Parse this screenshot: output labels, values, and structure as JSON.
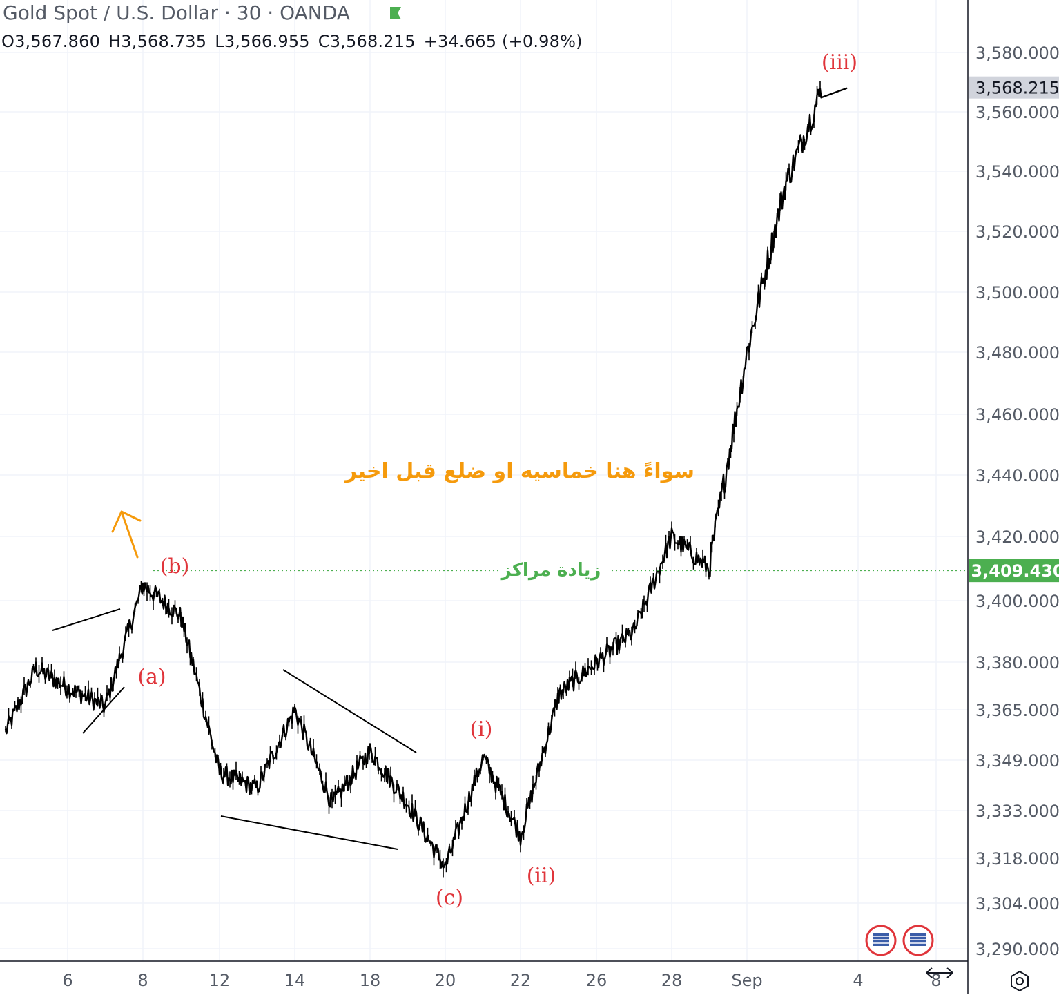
{
  "header": {
    "title": "Gold Spot / U.S. Dollar · 30 · OANDA",
    "open": "O3,567.860",
    "high": "H3,568.735",
    "low": "L3,566.955",
    "close": "C3,568.215",
    "change": "+34.665 (+0.98%)"
  },
  "colors": {
    "wave_label": "#e0353b",
    "annotation_orange": "#f59a0c",
    "level_green": "#4caf50",
    "candles": "#000000",
    "axis_text": "#555b66"
  },
  "chart_data": {
    "type": "line",
    "title": "Gold Spot / U.S. Dollar · 30 · OANDA",
    "x_tick_labels": [
      "6",
      "8",
      "12",
      "14",
      "18",
      "20",
      "22",
      "26",
      "28",
      "Sep",
      "4",
      "8"
    ],
    "y_tick_labels": [
      "3,580.000",
      "3,560.000",
      "3,540.000",
      "3,520.000",
      "3,500.000",
      "3,480.000",
      "3,460.000",
      "3,440.000",
      "3,420.000",
      "3,400.000",
      "3,380.000",
      "3,365.000",
      "3,349.000",
      "3,333.000",
      "3,318.000",
      "3,304.000",
      "3,290.000"
    ],
    "y_tick_values": [
      3580,
      3560,
      3540,
      3520,
      3500,
      3480,
      3460,
      3440,
      3420,
      3400,
      3380,
      3365,
      3349,
      3333,
      3318,
      3304,
      3290
    ],
    "current_price_label": "3,568.215",
    "level_price_label": "3,409.430",
    "level_price": 3409.43,
    "level_label": "زيادة مراكز",
    "annotation_text": "سواءً هنا خماسيه او ضلع قبل اخير",
    "series": [
      {
        "x": [
          "Aug 4",
          "Aug 5",
          "Aug 6",
          "Aug 7",
          "Aug 8",
          "Aug 11",
          "Aug 12",
          "Aug 13",
          "Aug 14",
          "Aug 15",
          "Aug 18",
          "Aug 19",
          "Aug 20",
          "Aug 21",
          "Aug 22",
          "Aug 25",
          "Aug 26",
          "Aug 27",
          "Aug 28",
          "Aug 29",
          "Sep 1",
          "Sep 2",
          "Sep 3"
        ],
        "values": [
          3358,
          3378,
          3372,
          3366,
          3405,
          3395,
          3345,
          3340,
          3365,
          3335,
          3352,
          3335,
          3315,
          3350,
          3325,
          3370,
          3380,
          3390,
          3420,
          3410,
          3480,
          3535,
          3568
        ]
      }
    ],
    "wave_labels": [
      {
        "text": "(a)",
        "date": "Aug 8",
        "price": 3374
      },
      {
        "text": "(b)",
        "date": "Aug 8",
        "price": 3411
      },
      {
        "text": "(c)",
        "date": "Aug 20",
        "price": 3305
      },
      {
        "text": "(i)",
        "date": "Aug 21",
        "price": 3351
      },
      {
        "text": "(ii)",
        "date": "Aug 22",
        "price": 3315
      },
      {
        "text": "(iii)",
        "date": "Sep 3",
        "price": 3580
      }
    ]
  }
}
